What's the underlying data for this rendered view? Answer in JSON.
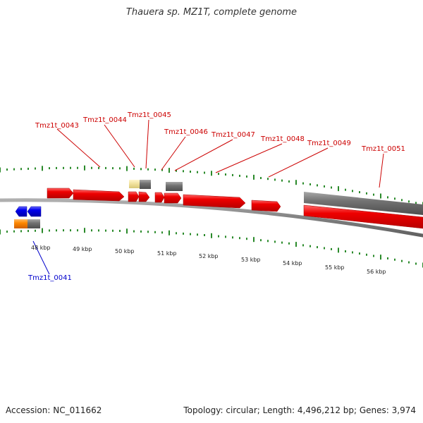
{
  "title": "Thauera sp. MZ1T, complete genome",
  "footer": {
    "accession": "Accession: NC_011662",
    "summary": "Topology: circular; Length: 4,496,212 bp; Genes: 3,974"
  },
  "scale_labels": [
    "48 kbp",
    "49 kbp",
    "50 kbp",
    "51 kbp",
    "52 kbp",
    "53 kbp",
    "54 kbp",
    "55 kbp",
    "56 kbp"
  ],
  "gene_labels": {
    "tmz1t_0041": "Tmz1t_0041",
    "tmz1t_0043": "Tmz1t_0043",
    "tmz1t_0044": "Tmz1t_0044",
    "tmz1t_0045": "Tmz1t_0045",
    "tmz1t_0046": "Tmz1t_0046",
    "tmz1t_0047": "Tmz1t_0047",
    "tmz1t_0048": "Tmz1t_0048",
    "tmz1t_0049": "Tmz1t_0049",
    "tmz1t_0051": "Tmz1t_0051"
  },
  "colors": {
    "forward_gene": "#ee0000",
    "reverse_gene": "#0000ee",
    "gray_feature": "#707070",
    "orange_feature": "#ff8800",
    "pale_feature": "#f0e09a",
    "tick": "#2a8a2a",
    "backbone": "#808080",
    "label_red": "#cc0000",
    "label_blue": "#0000cc"
  }
}
